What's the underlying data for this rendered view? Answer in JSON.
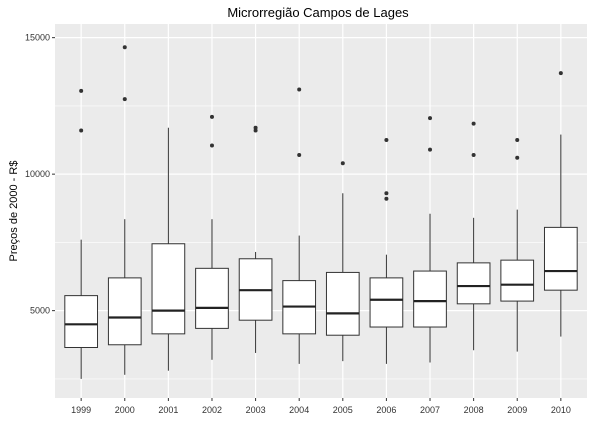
{
  "chart_data": {
    "type": "boxplot",
    "title": "Microrregião  Campos de Lages",
    "xlabel": "",
    "ylabel": "Preços de 2000 - R$",
    "ylim": [
      1800,
      15500
    ],
    "y_ticks": [
      5000,
      10000,
      15000
    ],
    "y_tick_labels": [
      "5000",
      "10000",
      "15000"
    ],
    "grid": true,
    "colors": {
      "panel": "#EBEBEB",
      "grid": "#FFFFFF",
      "box_fill": "#FFFFFF",
      "box_line": "#333333",
      "outlier": "#333333"
    },
    "categories": [
      "1999",
      "2000",
      "2001",
      "2002",
      "2003",
      "2004",
      "2005",
      "2006",
      "2007",
      "2008",
      "2009",
      "2010"
    ],
    "boxes": [
      {
        "category": "1999",
        "whisker_low": 2500,
        "q1": 3650,
        "median": 4500,
        "q3": 5550,
        "whisker_high": 7600,
        "outliers": [
          11600,
          13050
        ]
      },
      {
        "category": "2000",
        "whisker_low": 2650,
        "q1": 3750,
        "median": 4750,
        "q3": 6200,
        "whisker_high": 8350,
        "outliers": [
          12750,
          14650
        ]
      },
      {
        "category": "2001",
        "whisker_low": 2800,
        "q1": 4150,
        "median": 5000,
        "q3": 7450,
        "whisker_high": 11700,
        "outliers": []
      },
      {
        "category": "2002",
        "whisker_low": 3200,
        "q1": 4350,
        "median": 5100,
        "q3": 6550,
        "whisker_high": 8350,
        "outliers": [
          11050,
          12100
        ]
      },
      {
        "category": "2003",
        "whisker_low": 3450,
        "q1": 4650,
        "median": 5750,
        "q3": 6900,
        "whisker_high": 7150,
        "outliers": [
          11600,
          11700
        ]
      },
      {
        "category": "2004",
        "whisker_low": 3050,
        "q1": 4150,
        "median": 5150,
        "q3": 6100,
        "whisker_high": 7750,
        "outliers": [
          10700,
          13100
        ]
      },
      {
        "category": "2005",
        "whisker_low": 3150,
        "q1": 4100,
        "median": 4900,
        "q3": 6400,
        "whisker_high": 9300,
        "outliers": [
          10400
        ]
      },
      {
        "category": "2006",
        "whisker_low": 3050,
        "q1": 4400,
        "median": 5400,
        "q3": 6200,
        "whisker_high": 7050,
        "outliers": [
          9100,
          9300,
          11250
        ]
      },
      {
        "category": "2007",
        "whisker_low": 3100,
        "q1": 4400,
        "median": 5350,
        "q3": 6450,
        "whisker_high": 8550,
        "outliers": [
          10900,
          12050
        ]
      },
      {
        "category": "2008",
        "whisker_low": 3550,
        "q1": 5250,
        "median": 5900,
        "q3": 6750,
        "whisker_high": 8400,
        "outliers": [
          10700,
          11850
        ]
      },
      {
        "category": "2009",
        "whisker_low": 3500,
        "q1": 5350,
        "median": 5950,
        "q3": 6850,
        "whisker_high": 8700,
        "outliers": [
          10600,
          11250
        ]
      },
      {
        "category": "2010",
        "whisker_low": 4050,
        "q1": 5750,
        "median": 6450,
        "q3": 8050,
        "whisker_high": 11450,
        "outliers": [
          13700
        ]
      }
    ]
  }
}
